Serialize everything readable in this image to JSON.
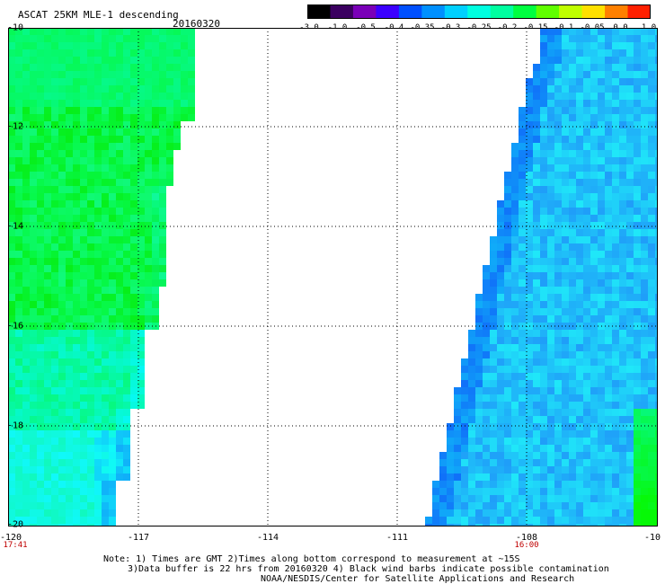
{
  "header": {
    "title": "ASCAT 25KM MLE-1 descending",
    "date": "20160320"
  },
  "colorbar": {
    "colors": [
      "#000000",
      "#3b0060",
      "#7a00b8",
      "#3c00ff",
      "#0050ff",
      "#0090ff",
      "#00d0ff",
      "#00ffe0",
      "#00ffa0",
      "#00ff40",
      "#60ff00",
      "#c0ff00",
      "#ffe000",
      "#ff8000",
      "#ff2000"
    ],
    "labels": [
      "-3.0",
      "-1.0",
      "-0.5",
      "-0.4",
      "-0.35",
      "-0.3",
      "-0.25",
      "-0.2",
      "-0.15",
      "-0.1",
      "-0.05",
      "0.0",
      "1.0"
    ]
  },
  "axes": {
    "y_labels": [
      "-10",
      "-12",
      "-14",
      "-16",
      "-18",
      "-20"
    ],
    "x_labels": [
      "-120",
      "-117",
      "-114",
      "-111",
      "-108",
      "-10"
    ]
  },
  "times": {
    "left": "17:41",
    "right": "16:00"
  },
  "notes": {
    "line1": "Note: 1) Times are GMT 2)Times along bottom correspond to measurement at ~15S",
    "line2": "3)Data buffer is 22 hrs from 20160320 4) Black wind barbs indicate possible contamination",
    "line3": "NOAA/NESDIS/Center for Satellite Applications and Research"
  }
}
